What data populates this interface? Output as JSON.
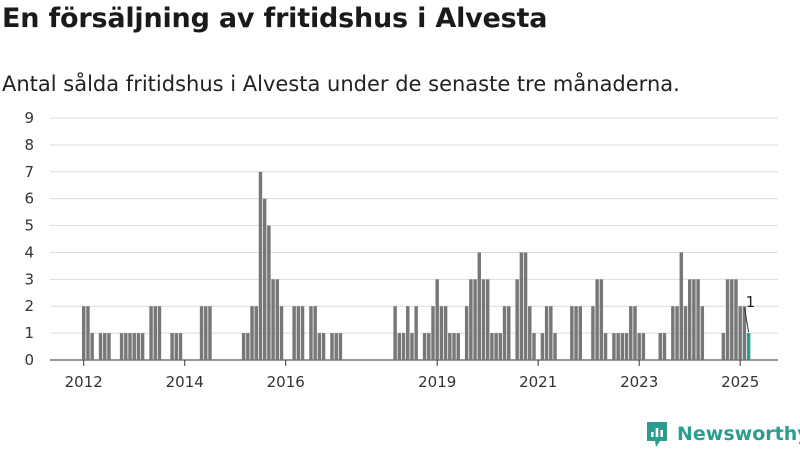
{
  "header": {
    "title": "En försäljning av fritidshus i Alvesta",
    "subtitle": "Antal sålda fritidshus i Alvesta under de senaste tre månaderna."
  },
  "brand": {
    "name": "Newsworthy",
    "icon": "newsworthy-logo-icon",
    "color": "#2a9d8f"
  },
  "chart_data": {
    "type": "bar",
    "title": "En försäljning av fritidshus i Alvesta",
    "subtitle": "Antal sålda fritidshus i Alvesta under de senaste tre månaderna.",
    "xlabel": "",
    "ylabel": "",
    "ylim": [
      0,
      9
    ],
    "y_ticks": [
      0,
      1,
      2,
      3,
      4,
      5,
      6,
      7,
      8,
      9
    ],
    "x_ticks": [
      "2012",
      "2014",
      "2016",
      "2019",
      "2021",
      "2023",
      "2025"
    ],
    "grid": true,
    "bar_color": "#77777a",
    "highlight_color": "#2a9d8f",
    "annotation": {
      "label": "1",
      "target": "latest"
    },
    "series": [
      {
        "values": [
          {
            "x": "2012-01",
            "y": 2
          },
          {
            "x": "2012-02",
            "y": 2
          },
          {
            "x": "2012-03",
            "y": 1
          },
          {
            "x": "2012-05",
            "y": 1
          },
          {
            "x": "2012-06",
            "y": 1
          },
          {
            "x": "2012-07",
            "y": 1
          },
          {
            "x": "2012-10",
            "y": 1
          },
          {
            "x": "2012-11",
            "y": 1
          },
          {
            "x": "2012-12",
            "y": 1
          },
          {
            "x": "2013-01",
            "y": 1
          },
          {
            "x": "2013-02",
            "y": 1
          },
          {
            "x": "2013-03",
            "y": 1
          },
          {
            "x": "2013-05",
            "y": 2
          },
          {
            "x": "2013-06",
            "y": 2
          },
          {
            "x": "2013-07",
            "y": 2
          },
          {
            "x": "2013-10",
            "y": 1
          },
          {
            "x": "2013-11",
            "y": 1
          },
          {
            "x": "2013-12",
            "y": 1
          },
          {
            "x": "2014-05",
            "y": 2
          },
          {
            "x": "2014-06",
            "y": 2
          },
          {
            "x": "2014-07",
            "y": 2
          },
          {
            "x": "2015-03",
            "y": 1
          },
          {
            "x": "2015-04",
            "y": 1
          },
          {
            "x": "2015-05",
            "y": 2
          },
          {
            "x": "2015-06",
            "y": 2
          },
          {
            "x": "2015-07",
            "y": 7
          },
          {
            "x": "2015-08",
            "y": 6
          },
          {
            "x": "2015-09",
            "y": 5
          },
          {
            "x": "2015-10",
            "y": 3
          },
          {
            "x": "2015-11",
            "y": 3
          },
          {
            "x": "2015-12",
            "y": 2
          },
          {
            "x": "2016-03",
            "y": 2
          },
          {
            "x": "2016-04",
            "y": 2
          },
          {
            "x": "2016-05",
            "y": 2
          },
          {
            "x": "2016-07",
            "y": 2
          },
          {
            "x": "2016-08",
            "y": 2
          },
          {
            "x": "2016-09",
            "y": 1
          },
          {
            "x": "2016-10",
            "y": 1
          },
          {
            "x": "2016-12",
            "y": 1
          },
          {
            "x": "2017-01",
            "y": 1
          },
          {
            "x": "2017-02",
            "y": 1
          },
          {
            "x": "2018-03",
            "y": 2
          },
          {
            "x": "2018-04",
            "y": 1
          },
          {
            "x": "2018-05",
            "y": 1
          },
          {
            "x": "2018-06",
            "y": 2
          },
          {
            "x": "2018-07",
            "y": 1
          },
          {
            "x": "2018-08",
            "y": 2
          },
          {
            "x": "2018-10",
            "y": 1
          },
          {
            "x": "2018-11",
            "y": 1
          },
          {
            "x": "2018-12",
            "y": 2
          },
          {
            "x": "2019-01",
            "y": 3
          },
          {
            "x": "2019-02",
            "y": 2
          },
          {
            "x": "2019-03",
            "y": 2
          },
          {
            "x": "2019-04",
            "y": 1
          },
          {
            "x": "2019-05",
            "y": 1
          },
          {
            "x": "2019-06",
            "y": 1
          },
          {
            "x": "2019-08",
            "y": 2
          },
          {
            "x": "2019-09",
            "y": 3
          },
          {
            "x": "2019-10",
            "y": 3
          },
          {
            "x": "2019-11",
            "y": 4
          },
          {
            "x": "2019-12",
            "y": 3
          },
          {
            "x": "2020-01",
            "y": 3
          },
          {
            "x": "2020-02",
            "y": 1
          },
          {
            "x": "2020-03",
            "y": 1
          },
          {
            "x": "2020-04",
            "y": 1
          },
          {
            "x": "2020-05",
            "y": 2
          },
          {
            "x": "2020-06",
            "y": 2
          },
          {
            "x": "2020-08",
            "y": 3
          },
          {
            "x": "2020-09",
            "y": 4
          },
          {
            "x": "2020-10",
            "y": 4
          },
          {
            "x": "2020-11",
            "y": 2
          },
          {
            "x": "2020-12",
            "y": 1
          },
          {
            "x": "2021-02",
            "y": 1
          },
          {
            "x": "2021-03",
            "y": 2
          },
          {
            "x": "2021-04",
            "y": 2
          },
          {
            "x": "2021-05",
            "y": 1
          },
          {
            "x": "2021-09",
            "y": 2
          },
          {
            "x": "2021-10",
            "y": 2
          },
          {
            "x": "2021-11",
            "y": 2
          },
          {
            "x": "2022-02",
            "y": 2
          },
          {
            "x": "2022-03",
            "y": 3
          },
          {
            "x": "2022-04",
            "y": 3
          },
          {
            "x": "2022-05",
            "y": 1
          },
          {
            "x": "2022-07",
            "y": 1
          },
          {
            "x": "2022-08",
            "y": 1
          },
          {
            "x": "2022-09",
            "y": 1
          },
          {
            "x": "2022-10",
            "y": 1
          },
          {
            "x": "2022-11",
            "y": 2
          },
          {
            "x": "2022-12",
            "y": 2
          },
          {
            "x": "2023-01",
            "y": 1
          },
          {
            "x": "2023-02",
            "y": 1
          },
          {
            "x": "2023-06",
            "y": 1
          },
          {
            "x": "2023-07",
            "y": 1
          },
          {
            "x": "2023-09",
            "y": 2
          },
          {
            "x": "2023-10",
            "y": 2
          },
          {
            "x": "2023-11",
            "y": 4
          },
          {
            "x": "2023-12",
            "y": 2
          },
          {
            "x": "2024-01",
            "y": 3
          },
          {
            "x": "2024-02",
            "y": 3
          },
          {
            "x": "2024-03",
            "y": 3
          },
          {
            "x": "2024-04",
            "y": 2
          },
          {
            "x": "2024-09",
            "y": 1
          },
          {
            "x": "2024-10",
            "y": 3
          },
          {
            "x": "2024-11",
            "y": 3
          },
          {
            "x": "2024-12",
            "y": 3
          },
          {
            "x": "2025-01",
            "y": 2
          },
          {
            "x": "2025-02",
            "y": 2
          },
          {
            "x": "2025-03",
            "y": 1
          }
        ]
      }
    ]
  }
}
